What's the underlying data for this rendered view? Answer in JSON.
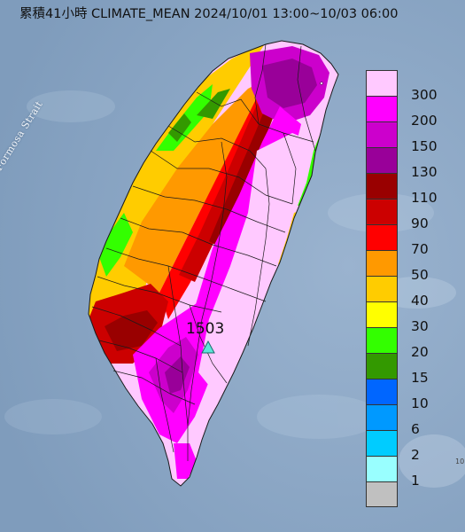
{
  "title": "累積41小時 CLIMATE_MEAN 2024/10/01 13:00~10/03 06:00",
  "sea_label": "Formosa Strait",
  "station": {
    "value": "1503"
  },
  "corner_mark": "10",
  "legend": [
    {
      "label": "300",
      "color": "#ffc9ff"
    },
    {
      "label": "200",
      "color": "#ff00ff"
    },
    {
      "label": "150",
      "color": "#cc00cc"
    },
    {
      "label": "130",
      "color": "#990099"
    },
    {
      "label": "110",
      "color": "#990000"
    },
    {
      "label": "90",
      "color": "#cc0000"
    },
    {
      "label": "70",
      "color": "#ff0000"
    },
    {
      "label": "50",
      "color": "#ff9900"
    },
    {
      "label": "40",
      "color": "#ffcc00"
    },
    {
      "label": "30",
      "color": "#ffff00"
    },
    {
      "label": "20",
      "color": "#33ff00"
    },
    {
      "label": "15",
      "color": "#339900"
    },
    {
      "label": "10",
      "color": "#0066ff"
    },
    {
      "label": "6",
      "color": "#0099ff"
    },
    {
      "label": "2",
      "color": "#00ccff"
    },
    {
      "label": "1",
      "color": "#99ffff"
    },
    {
      "label": "",
      "color": "#c0c0c0"
    }
  ],
  "colors": {
    "sea": "#8ea9c6",
    "station_marker": "#5ee6d8",
    "boundary": "#1a1a1a"
  }
}
